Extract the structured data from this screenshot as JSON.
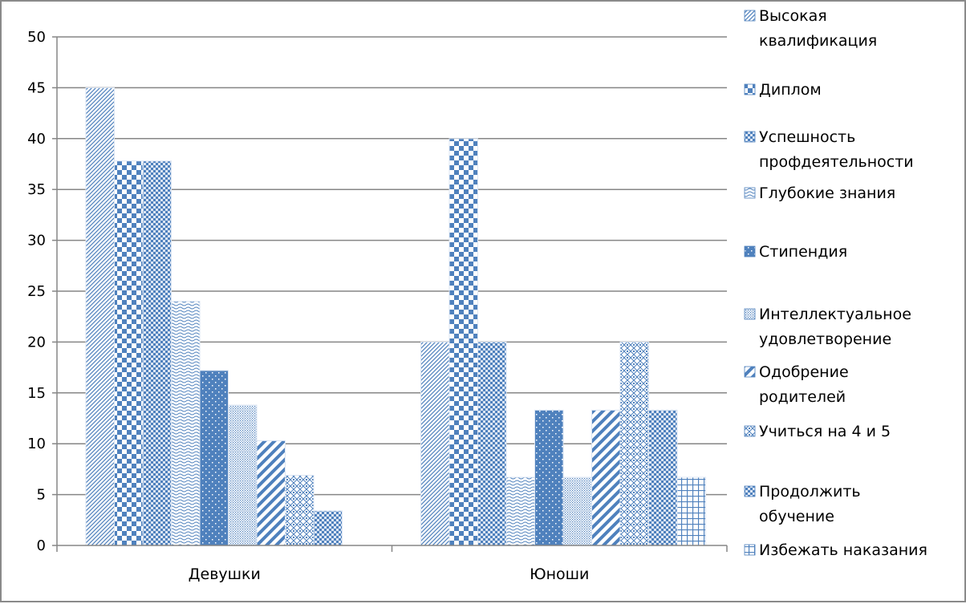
{
  "chart_data": {
    "type": "bar",
    "categories": [
      "Девушки",
      "Юноши"
    ],
    "ylim": [
      0,
      50
    ],
    "yticks": [
      0,
      5,
      10,
      15,
      20,
      25,
      30,
      35,
      40,
      45,
      50
    ],
    "grid": true,
    "legend_position": "right",
    "series": [
      {
        "name": "Высокая квалификация",
        "values": [
          45,
          20
        ],
        "pattern": "diag-left-fine",
        "color": "#4f81bd"
      },
      {
        "name": "Диплом",
        "values": [
          37.8,
          40
        ],
        "pattern": "checker-large",
        "color": "#4f81bd"
      },
      {
        "name": "Успешность профдеятельности",
        "values": [
          37.8,
          20
        ],
        "pattern": "checker-small",
        "color": "#4f81bd"
      },
      {
        "name": "Глубокие знания",
        "values": [
          24,
          6.7
        ],
        "pattern": "wave",
        "color": "#4f81bd"
      },
      {
        "name": "Стипендия",
        "values": [
          17.2,
          13.3
        ],
        "pattern": "dots-sparse",
        "color": "#4f81bd"
      },
      {
        "name": "Интеллектуальное удовлетворение",
        "values": [
          13.8,
          6.7
        ],
        "pattern": "dots-dense",
        "color": "#4f81bd"
      },
      {
        "name": "Одобрение родителей",
        "values": [
          10.3,
          13.3
        ],
        "pattern": "diag-right-wide",
        "color": "#4f81bd"
      },
      {
        "name": "Учиться на 4 и 5",
        "values": [
          6.9,
          20
        ],
        "pattern": "diamond",
        "color": "#4f81bd"
      },
      {
        "name": "Продолжить обучение",
        "values": [
          3.4,
          13.3
        ],
        "pattern": "checker-small",
        "color": "#4f81bd"
      },
      {
        "name": "Избежать наказания",
        "values": [
          0,
          6.7
        ],
        "pattern": "grid",
        "color": "#4f81bd"
      }
    ]
  }
}
